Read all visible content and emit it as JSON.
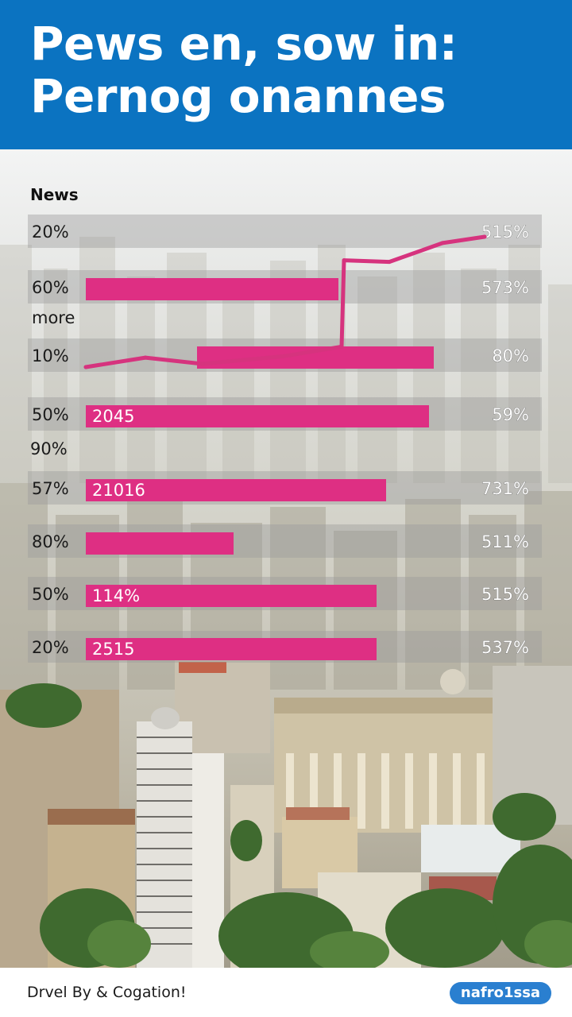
{
  "header": {
    "title_line1": "Pews en, sow in:",
    "title_line2": "Pernog onannes",
    "background": "#0b73c1"
  },
  "chart_data": {
    "type": "bar",
    "legend_label": "News",
    "extra_labels": [
      "more",
      "90%"
    ],
    "rows": [
      {
        "left_label": "20%",
        "right_label": "515%",
        "inner_label": "",
        "value": 0
      },
      {
        "left_label": "60%",
        "right_label": "573%",
        "inner_label": "",
        "value": 53
      },
      {
        "left_label": "10%",
        "right_label": "80%",
        "inner_label": "",
        "value": 73
      },
      {
        "left_label": "50%",
        "right_label": "59%",
        "inner_label": "2045",
        "value": 72
      },
      {
        "left_label": "57%",
        "right_label": "731%",
        "inner_label": "21016",
        "value": 63
      },
      {
        "left_label": "80%",
        "right_label": "511%",
        "inner_label": "",
        "value": 31
      },
      {
        "left_label": "50%",
        "right_label": "515%",
        "inner_label": "114%",
        "value": 61
      },
      {
        "left_label": "20%",
        "right_label": "537%",
        "inner_label": "2515",
        "value": 61
      }
    ],
    "line_series": [
      20,
      26,
      22,
      27,
      33,
      88,
      87,
      99,
      103
    ],
    "bar_color": "#de2f83",
    "line_color": "#d6337e",
    "track_color": "#9a9a9a"
  },
  "footer": {
    "text": "Drvel By & Cogation!",
    "logo_text": "nafro1ssa",
    "logo_color": "#2a7fd0"
  }
}
